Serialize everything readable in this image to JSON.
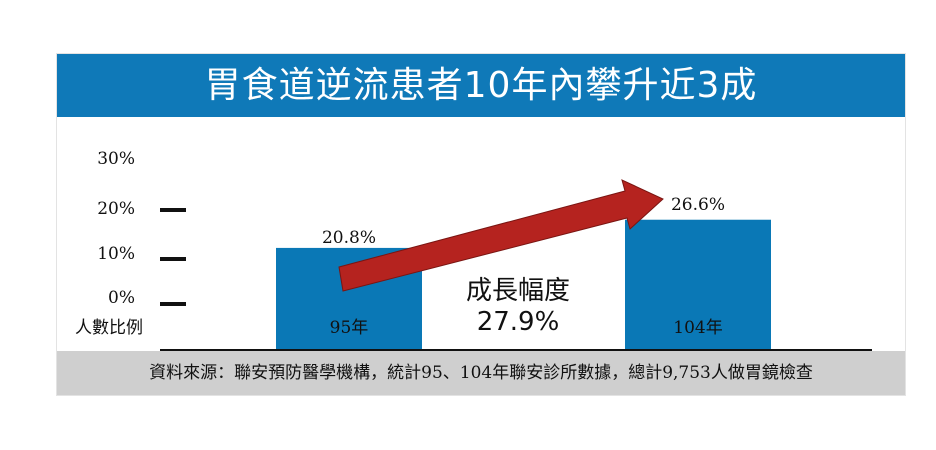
{
  "chart_data": {
    "type": "bar",
    "title": "胃食道逆流患者10年內攀升近3成",
    "categories": [
      "95年",
      "104年"
    ],
    "values": [
      20.8,
      26.6
    ],
    "value_labels": [
      "20.8%",
      "26.6%"
    ],
    "ylabel": "人數比例",
    "y_ticks": [
      "0%",
      "10%",
      "20%",
      "30%"
    ],
    "ylim": [
      0,
      30
    ],
    "annotation": {
      "line1": "成長幅度",
      "line2": "27.9%"
    },
    "source": "資料來源：聯安預防醫學機構，統計95、104年聯安診所數據，總計9,753人做胃鏡檢查"
  },
  "colors": {
    "title_bar": "#0f79b8",
    "bar": "#0a78b6",
    "arrow": "#b5231f",
    "source_bar": "#cfcfcf"
  }
}
